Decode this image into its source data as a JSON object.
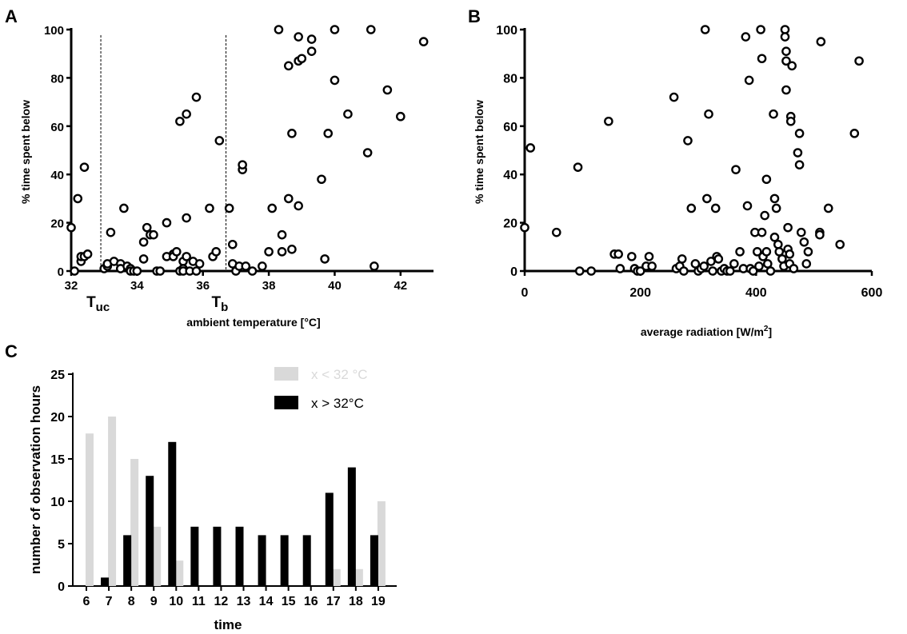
{
  "panels": [
    {
      "label": "A",
      "type": "scatter",
      "xlabel": "ambient temperature [°C]",
      "ylabel": "% time spent below",
      "xlim": [
        32,
        43
      ],
      "ylim": [
        0,
        100
      ],
      "xticks": [
        "32",
        "34",
        "36",
        "38",
        "40",
        "42"
      ],
      "yticks": [
        "0",
        "20",
        "40",
        "60",
        "80",
        "100"
      ],
      "annotations": [
        {
          "text": "T",
          "sub": "uc",
          "x": 32.9
        },
        {
          "text": "T",
          "sub": "b",
          "x": 36.7
        }
      ],
      "points": [
        [
          32.0,
          18
        ],
        [
          32.1,
          0
        ],
        [
          32.2,
          30
        ],
        [
          32.3,
          4
        ],
        [
          32.3,
          6
        ],
        [
          32.4,
          6
        ],
        [
          32.4,
          43
        ],
        [
          32.5,
          7
        ],
        [
          33.0,
          1
        ],
        [
          33.1,
          2
        ],
        [
          33.1,
          3
        ],
        [
          33.2,
          16
        ],
        [
          33.3,
          4
        ],
        [
          33.5,
          3
        ],
        [
          33.5,
          1
        ],
        [
          33.6,
          26
        ],
        [
          33.7,
          2
        ],
        [
          33.8,
          1
        ],
        [
          33.8,
          0
        ],
        [
          33.9,
          0
        ],
        [
          34.0,
          0
        ],
        [
          34.2,
          5
        ],
        [
          34.2,
          12
        ],
        [
          34.3,
          18
        ],
        [
          34.4,
          15
        ],
        [
          34.5,
          15
        ],
        [
          34.6,
          0
        ],
        [
          34.7,
          0
        ],
        [
          34.9,
          20
        ],
        [
          34.9,
          6
        ],
        [
          35.1,
          7
        ],
        [
          35.1,
          6
        ],
        [
          35.2,
          8
        ],
        [
          35.3,
          0
        ],
        [
          35.3,
          62
        ],
        [
          35.4,
          4
        ],
        [
          35.4,
          1
        ],
        [
          35.4,
          0
        ],
        [
          35.5,
          65
        ],
        [
          35.5,
          22
        ],
        [
          35.5,
          6
        ],
        [
          35.6,
          0
        ],
        [
          35.7,
          4
        ],
        [
          35.8,
          72
        ],
        [
          35.8,
          0
        ],
        [
          35.9,
          3
        ],
        [
          36.2,
          26
        ],
        [
          36.3,
          6
        ],
        [
          36.4,
          8
        ],
        [
          36.5,
          54
        ],
        [
          36.8,
          26
        ],
        [
          36.9,
          11
        ],
        [
          36.9,
          3
        ],
        [
          37.0,
          0
        ],
        [
          37.1,
          2
        ],
        [
          37.2,
          42
        ],
        [
          37.2,
          44
        ],
        [
          37.3,
          2
        ],
        [
          37.5,
          0
        ],
        [
          37.8,
          2
        ],
        [
          38.0,
          8
        ],
        [
          38.1,
          26
        ],
        [
          38.3,
          100
        ],
        [
          38.4,
          15
        ],
        [
          38.4,
          8
        ],
        [
          38.6,
          85
        ],
        [
          38.6,
          30
        ],
        [
          38.7,
          9
        ],
        [
          38.7,
          57
        ],
        [
          38.9,
          87
        ],
        [
          38.9,
          27
        ],
        [
          38.9,
          97
        ],
        [
          39.0,
          88
        ],
        [
          39.3,
          91
        ],
        [
          39.3,
          96
        ],
        [
          39.6,
          38
        ],
        [
          39.7,
          5
        ],
        [
          39.8,
          57
        ],
        [
          40.0,
          79
        ],
        [
          40.0,
          100
        ],
        [
          40.4,
          65
        ],
        [
          41.0,
          49
        ],
        [
          41.1,
          100
        ],
        [
          41.2,
          2
        ],
        [
          41.6,
          75
        ],
        [
          42.0,
          64
        ],
        [
          42.7,
          95
        ]
      ]
    },
    {
      "label": "B",
      "type": "scatter",
      "xlabel": "average radiation [W/m",
      "xlabel_sup": "2",
      "xlabel_end": "]",
      "ylabel": "% time spent below",
      "xlim": [
        0,
        600
      ],
      "ylim": [
        0,
        100
      ],
      "xticks": [
        "0",
        "200",
        "400",
        "600"
      ],
      "yticks": [
        "0",
        "20",
        "40",
        "60",
        "80",
        "100"
      ],
      "points": [
        [
          0,
          18
        ],
        [
          10,
          51
        ],
        [
          55,
          16
        ],
        [
          92,
          43
        ],
        [
          95,
          0
        ],
        [
          115,
          0
        ],
        [
          145,
          62
        ],
        [
          155,
          7
        ],
        [
          162,
          7
        ],
        [
          165,
          1
        ],
        [
          185,
          6
        ],
        [
          190,
          1
        ],
        [
          195,
          0
        ],
        [
          200,
          0
        ],
        [
          210,
          2
        ],
        [
          215,
          6
        ],
        [
          220,
          2
        ],
        [
          258,
          72
        ],
        [
          262,
          1
        ],
        [
          268,
          2
        ],
        [
          272,
          5
        ],
        [
          275,
          0
        ],
        [
          282,
          54
        ],
        [
          288,
          26
        ],
        [
          295,
          3
        ],
        [
          300,
          0
        ],
        [
          305,
          1
        ],
        [
          310,
          2
        ],
        [
          312,
          100
        ],
        [
          315,
          30
        ],
        [
          318,
          65
        ],
        [
          322,
          4
        ],
        [
          325,
          0
        ],
        [
          330,
          26
        ],
        [
          332,
          6
        ],
        [
          335,
          5
        ],
        [
          340,
          0
        ],
        [
          345,
          1
        ],
        [
          350,
          0
        ],
        [
          355,
          0
        ],
        [
          362,
          3
        ],
        [
          365,
          42
        ],
        [
          372,
          8
        ],
        [
          378,
          1
        ],
        [
          382,
          97
        ],
        [
          385,
          27
        ],
        [
          388,
          79
        ],
        [
          390,
          1
        ],
        [
          395,
          0
        ],
        [
          398,
          16
        ],
        [
          402,
          8
        ],
        [
          405,
          2
        ],
        [
          408,
          100
        ],
        [
          410,
          88
        ],
        [
          410,
          16
        ],
        [
          412,
          6
        ],
        [
          415,
          23
        ],
        [
          418,
          38
        ],
        [
          418,
          8
        ],
        [
          420,
          3
        ],
        [
          425,
          0
        ],
        [
          430,
          65
        ],
        [
          432,
          14
        ],
        [
          432,
          30
        ],
        [
          435,
          26
        ],
        [
          438,
          11
        ],
        [
          440,
          8
        ],
        [
          445,
          5
        ],
        [
          448,
          2
        ],
        [
          450,
          100
        ],
        [
          450,
          97
        ],
        [
          452,
          91
        ],
        [
          452,
          87
        ],
        [
          452,
          75
        ],
        [
          455,
          18
        ],
        [
          455,
          9
        ],
        [
          458,
          7
        ],
        [
          458,
          3
        ],
        [
          460,
          64
        ],
        [
          460,
          62
        ],
        [
          462,
          85
        ],
        [
          465,
          1
        ],
        [
          472,
          49
        ],
        [
          475,
          44
        ],
        [
          475,
          57
        ],
        [
          478,
          16
        ],
        [
          483,
          12
        ],
        [
          487,
          3
        ],
        [
          490,
          8
        ],
        [
          510,
          16
        ],
        [
          510,
          15
        ],
        [
          512,
          95
        ],
        [
          525,
          26
        ],
        [
          545,
          11
        ],
        [
          570,
          57
        ],
        [
          578,
          87
        ]
      ]
    }
  ],
  "chart_data": {
    "type": "bar",
    "label": "C",
    "title": "",
    "xlabel": "time",
    "ylabel": "number of observation hours",
    "ylim": [
      0,
      25
    ],
    "yticks": [
      "0",
      "5",
      "10",
      "15",
      "20",
      "25"
    ],
    "categories": [
      "6",
      "7",
      "8",
      "9",
      "10",
      "11",
      "12",
      "13",
      "14",
      "15",
      "16",
      "17",
      "18",
      "19"
    ],
    "series": [
      {
        "name": "x < 32 °C",
        "color": "#d9d9d9",
        "values": [
          18,
          20,
          15,
          7,
          3,
          0,
          0,
          0,
          0,
          0,
          0,
          2,
          2,
          10
        ]
      },
      {
        "name": "x > 32°C",
        "color": "#000000",
        "values": [
          0,
          1,
          6,
          13,
          17,
          7,
          7,
          7,
          6,
          6,
          6,
          11,
          14,
          6
        ]
      }
    ],
    "legend_position": "top-right"
  }
}
